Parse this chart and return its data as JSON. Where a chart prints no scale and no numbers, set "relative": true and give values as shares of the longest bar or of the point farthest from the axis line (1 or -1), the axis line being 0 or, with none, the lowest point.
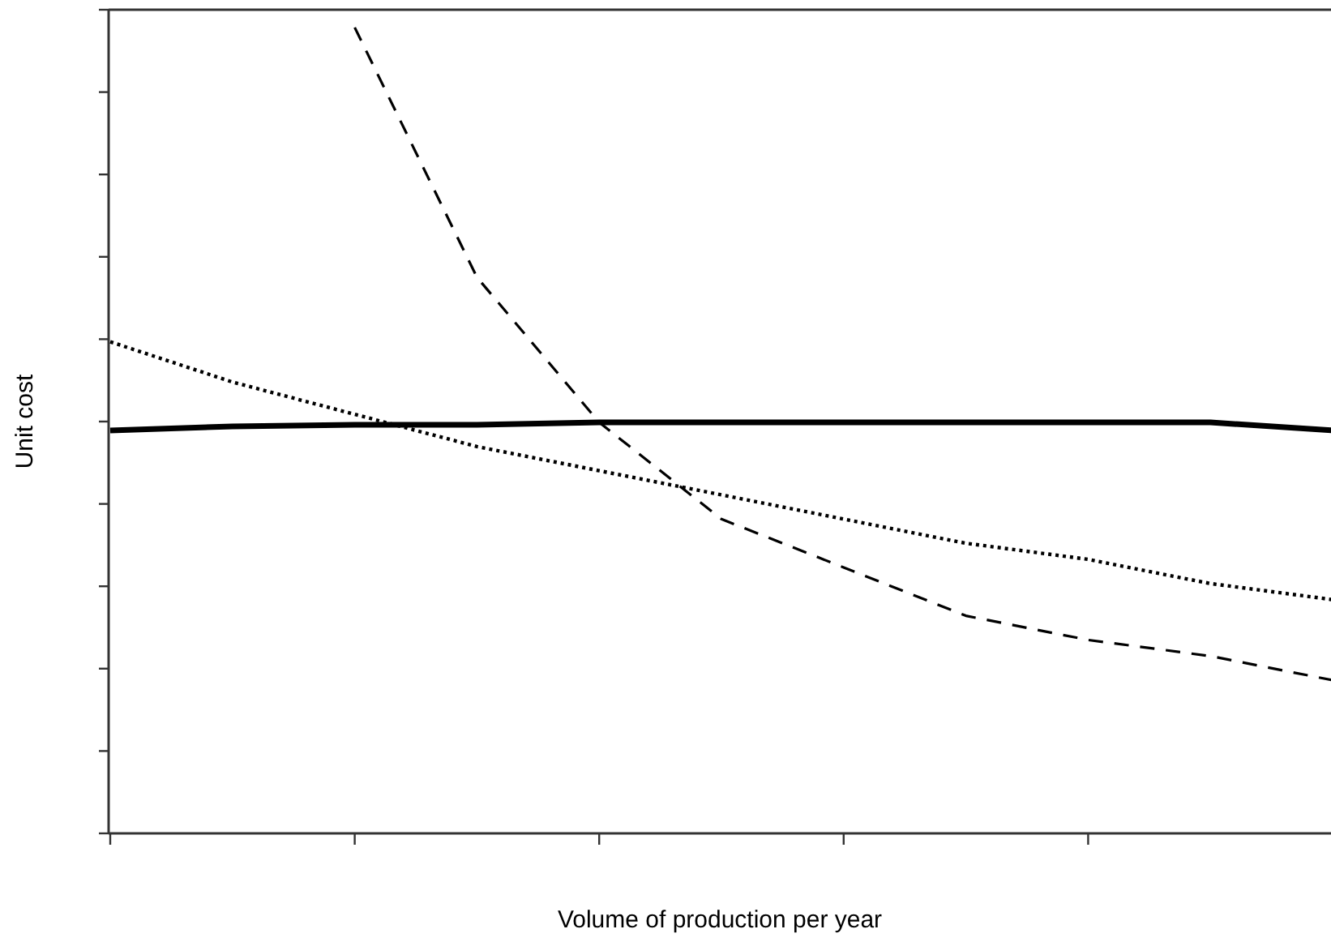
{
  "chart_data": {
    "type": "line",
    "relative": true,
    "xlabel": "Volume of production per year",
    "ylabel": "Unit cost",
    "categories": [
      null,
      null,
      null,
      null,
      null,
      null,
      null,
      null,
      null,
      null,
      null
    ],
    "series": [
      {
        "color": "#000000",
        "line_style": "solid",
        "values": [
          0.5,
          0.505,
          0.507,
          0.507,
          0.51,
          0.51,
          0.51,
          0.51,
          0.51,
          0.51,
          0.5
        ]
      },
      {
        "color": "#000000",
        "line_style": "dotted",
        "values": [
          0.61,
          0.56,
          0.52,
          0.48,
          0.45,
          0.42,
          0.39,
          0.36,
          0.34,
          0.31,
          0.29
        ]
      },
      {
        "color": "#000000",
        "line_style": "dashed",
        "values": [
          null,
          null,
          1.0,
          0.69,
          0.51,
          0.39,
          0.33,
          0.27,
          0.24,
          0.22,
          0.19
        ]
      }
    ]
  }
}
